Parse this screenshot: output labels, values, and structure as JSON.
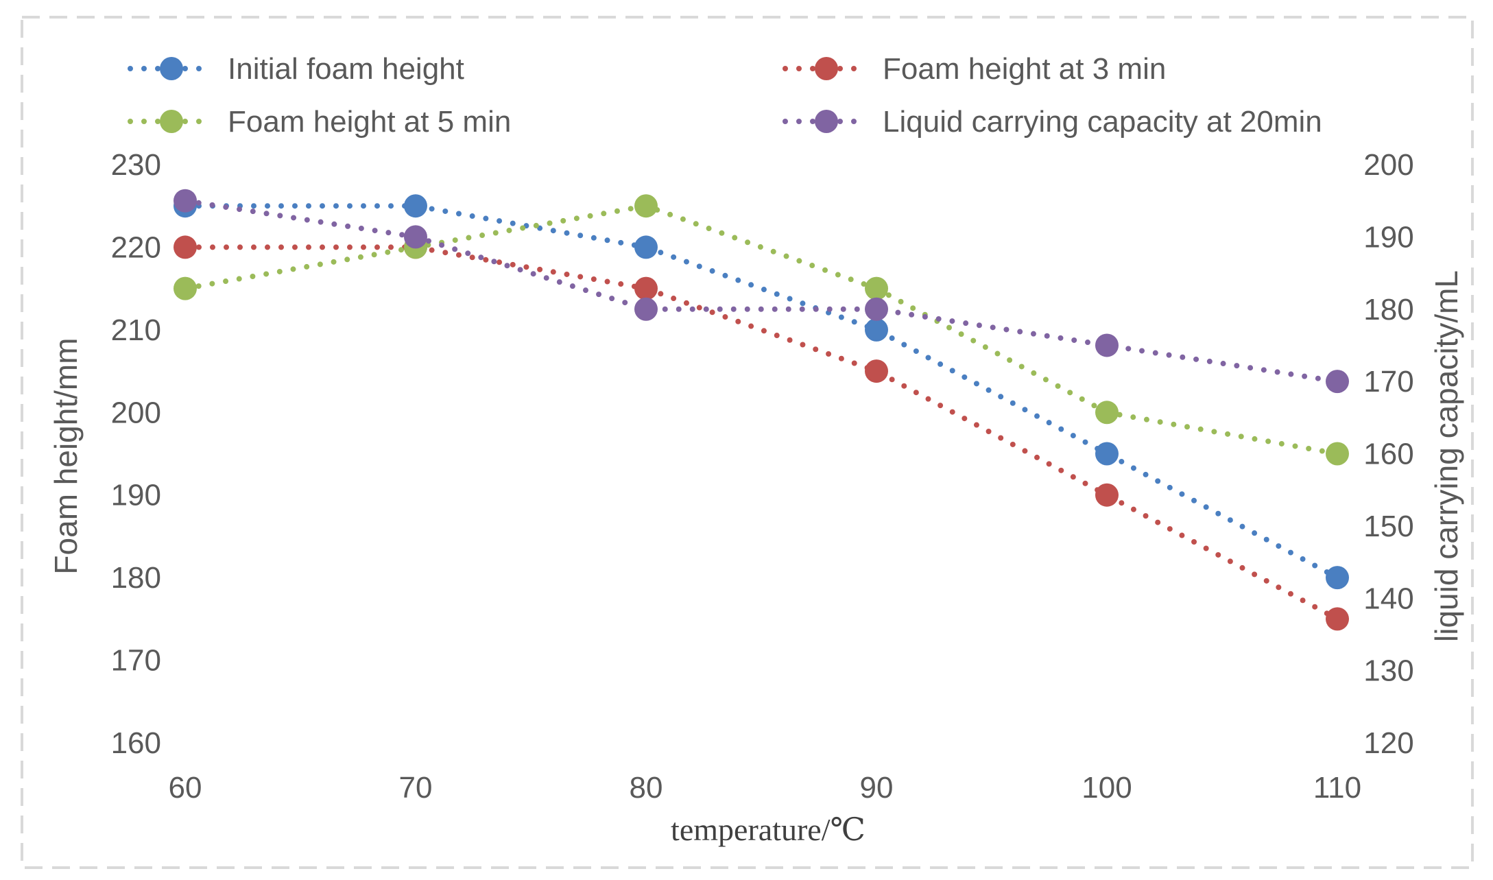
{
  "chart_data": {
    "type": "line",
    "title": "",
    "xlabel": "temperature/℃",
    "ylabel_left": "Foam height/mm",
    "ylabel_right": "liquid carrying capacity/mL",
    "x": [
      60,
      70,
      80,
      90,
      100,
      110
    ],
    "x_ticks": [
      "60",
      "70",
      "80",
      "90",
      "100",
      "110"
    ],
    "ylim_left": [
      160,
      230
    ],
    "yticks_left": [
      "160",
      "170",
      "180",
      "190",
      "200",
      "210",
      "220",
      "230"
    ],
    "ylim_right": [
      120,
      200
    ],
    "yticks_right": [
      "120",
      "130",
      "140",
      "150",
      "160",
      "170",
      "180",
      "190",
      "200"
    ],
    "grid": false,
    "legend_position": "top",
    "series": [
      {
        "name": "Initial foam height",
        "axis": "left",
        "color": "#4a7fc1",
        "values": [
          225,
          225,
          220,
          210,
          195,
          180
        ]
      },
      {
        "name": "Foam height at 3 min",
        "axis": "left",
        "color": "#c0504d",
        "values": [
          220,
          220,
          215,
          205,
          190,
          175
        ]
      },
      {
        "name": "Foam height at 5 min",
        "axis": "left",
        "color": "#9bbb59",
        "values": [
          215,
          220,
          225,
          215,
          200,
          195
        ]
      },
      {
        "name": "Liquid carrying capacity at 20min",
        "axis": "right",
        "color": "#8064a2",
        "values": [
          195,
          190,
          180,
          180,
          175,
          170
        ]
      }
    ]
  }
}
